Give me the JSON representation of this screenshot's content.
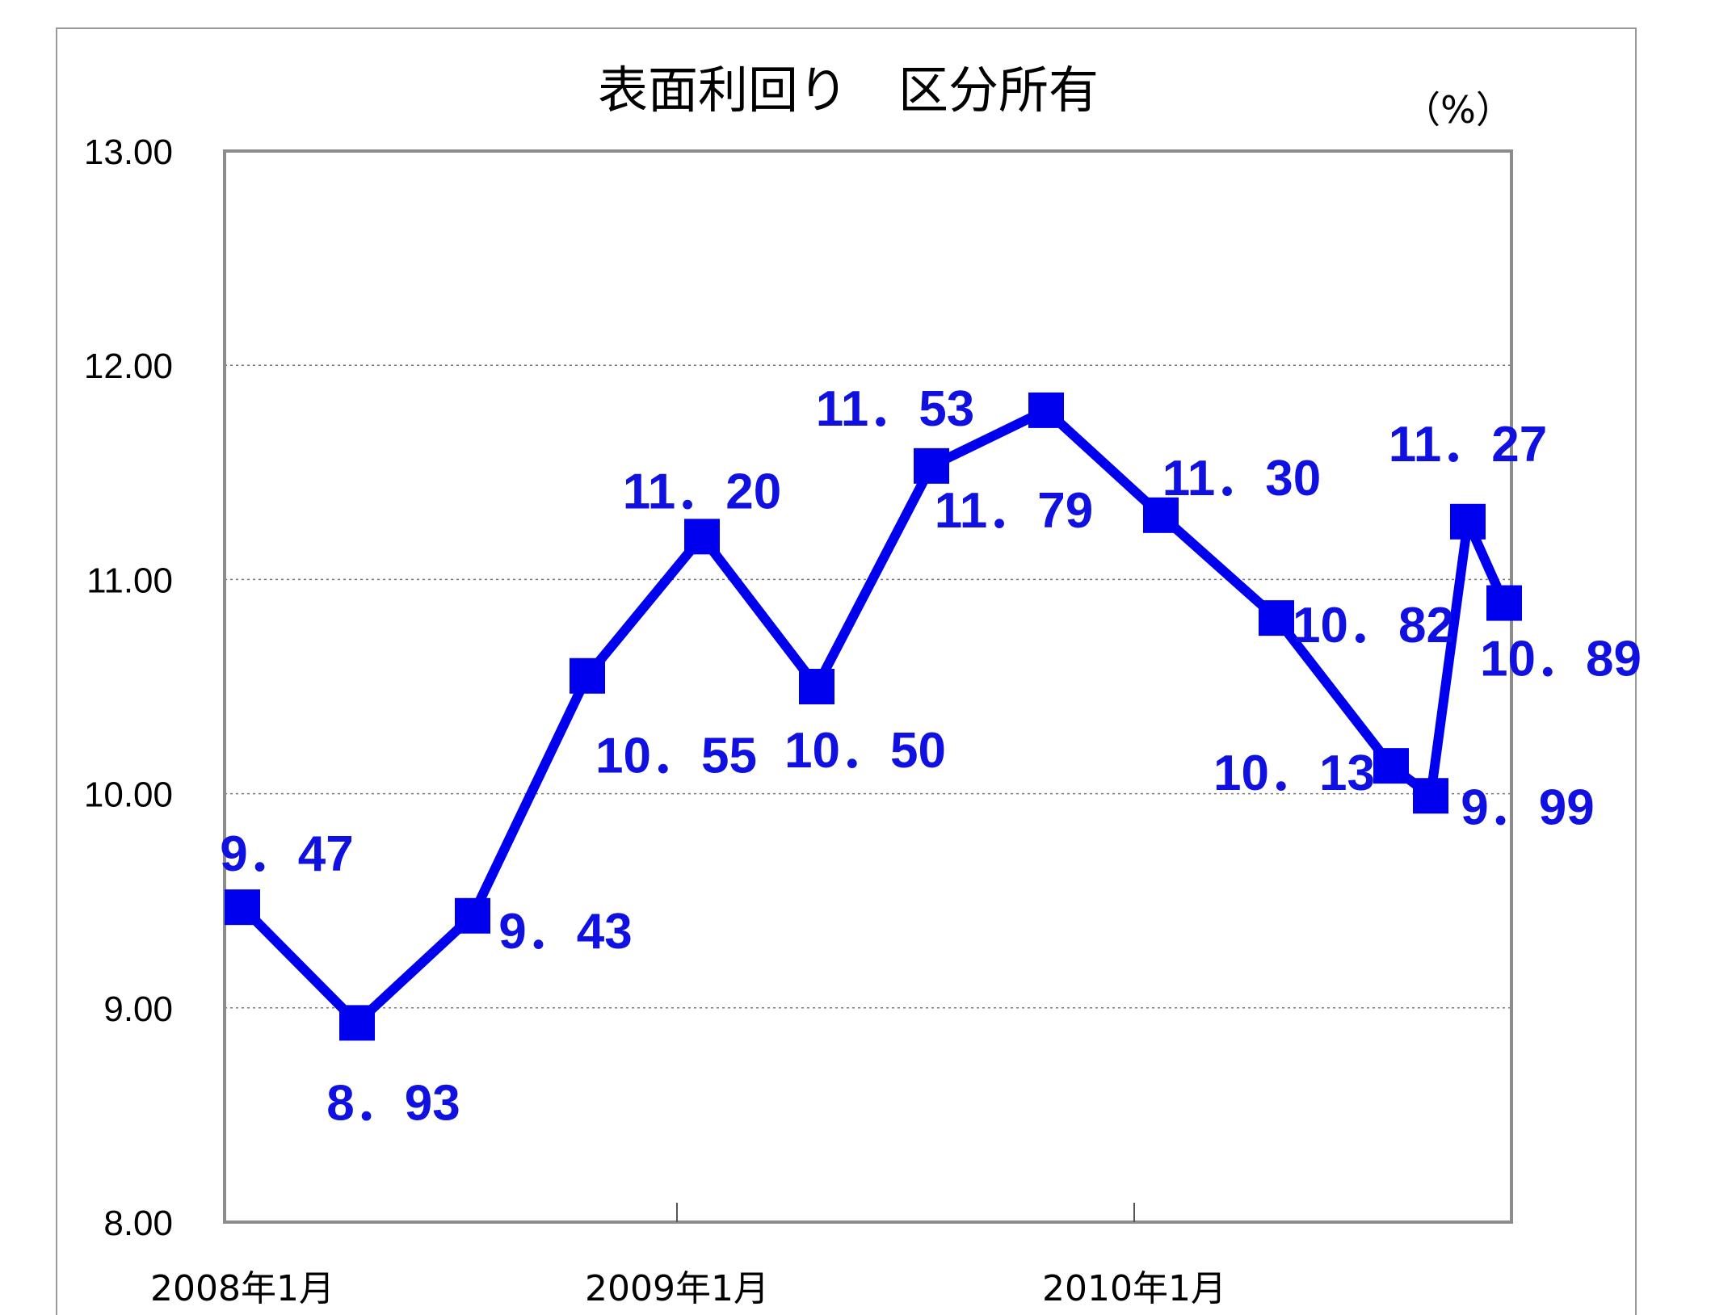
{
  "chart_data": {
    "type": "line",
    "title": "表面利回り　区分所有",
    "unit_label": "（%）",
    "xlabel": "",
    "ylabel": "",
    "ylim": [
      8.0,
      13.0
    ],
    "y_ticks": [
      "13.00",
      "12.00",
      "11.00",
      "10.00",
      "9.00",
      "8.00"
    ],
    "x_tick_labels": [
      "2008年1月",
      "2009年1月",
      "2010年1月"
    ],
    "grid": true,
    "series": [
      {
        "color": "#0000ee",
        "marker": "square",
        "x": [
          "2008年1月",
          "2008年4月",
          "2008年7月",
          "2008年10月",
          "2009年1月",
          "2009年4月",
          "2009年7月",
          "2009年10月",
          "2010年1月",
          "2010年4月",
          "2010年7月",
          "2010年8月",
          "2010年9月",
          "2010年10月"
        ],
        "values": [
          9.47,
          8.93,
          9.43,
          10.55,
          11.2,
          10.5,
          11.53,
          11.79,
          11.3,
          10.82,
          10.13,
          9.99,
          11.27,
          10.89
        ],
        "data_labels": [
          "9．47",
          "8．93",
          "9．43",
          "10．55",
          "11．20",
          "10．50",
          "11．53",
          "11．79",
          "11．30",
          "10．82",
          "10．13",
          "9．99",
          "11．27",
          "10．89"
        ]
      }
    ]
  }
}
